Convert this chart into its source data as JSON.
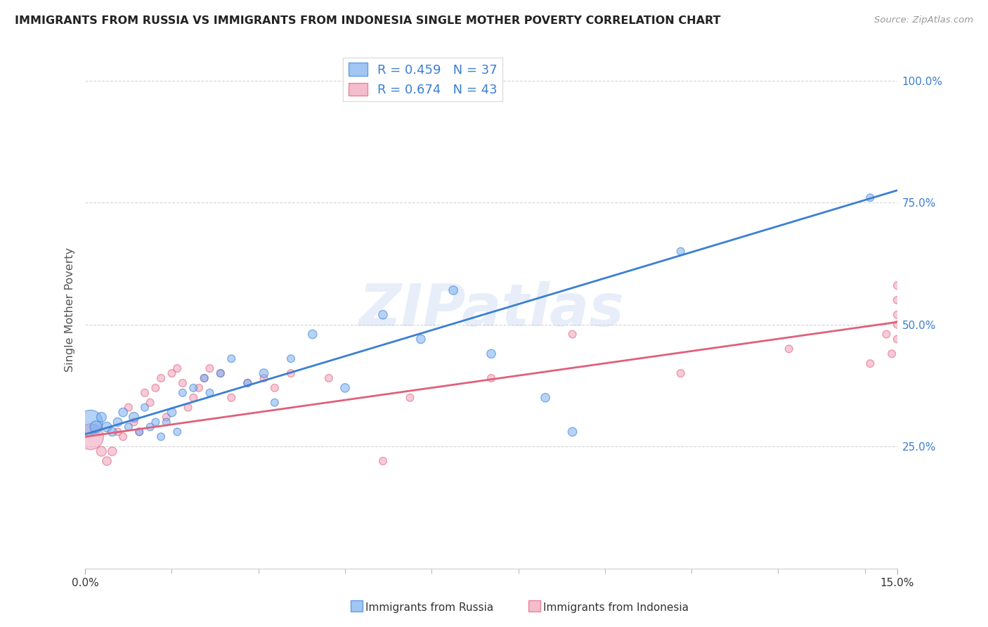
{
  "title": "IMMIGRANTS FROM RUSSIA VS IMMIGRANTS FROM INDONESIA SINGLE MOTHER POVERTY CORRELATION CHART",
  "source": "Source: ZipAtlas.com",
  "ylabel": "Single Mother Poverty",
  "y_tick_labels": [
    "25.0%",
    "50.0%",
    "75.0%",
    "100.0%"
  ],
  "y_tick_vals": [
    0.25,
    0.5,
    0.75,
    1.0
  ],
  "legend_label_russia": "Immigrants from Russia",
  "legend_label_indonesia": "Immigrants from Indonesia",
  "russia_color": "#7aaff0",
  "indonesia_color": "#f0a0b8",
  "trendline_russia_color": "#3a7fd4",
  "trendline_indonesia_color": "#e0607a",
  "watermark": "ZIPatlas",
  "watermark_color": "#c5d5f0",
  "background_color": "#ffffff",
  "russia_x": [
    0.001,
    0.002,
    0.003,
    0.004,
    0.005,
    0.006,
    0.007,
    0.008,
    0.009,
    0.01,
    0.011,
    0.012,
    0.013,
    0.014,
    0.015,
    0.016,
    0.017,
    0.018,
    0.02,
    0.022,
    0.023,
    0.025,
    0.027,
    0.03,
    0.033,
    0.035,
    0.038,
    0.042,
    0.048,
    0.055,
    0.062,
    0.068,
    0.075,
    0.085,
    0.09,
    0.11,
    0.145
  ],
  "russia_y": [
    0.3,
    0.29,
    0.31,
    0.29,
    0.28,
    0.3,
    0.32,
    0.29,
    0.31,
    0.28,
    0.33,
    0.29,
    0.3,
    0.27,
    0.3,
    0.32,
    0.28,
    0.36,
    0.37,
    0.39,
    0.36,
    0.4,
    0.43,
    0.38,
    0.4,
    0.34,
    0.43,
    0.48,
    0.37,
    0.52,
    0.47,
    0.57,
    0.44,
    0.35,
    0.28,
    0.65,
    0.76
  ],
  "russia_sizes": [
    600,
    150,
    100,
    100,
    80,
    80,
    80,
    60,
    100,
    60,
    60,
    60,
    60,
    60,
    60,
    80,
    60,
    60,
    60,
    60,
    60,
    60,
    60,
    60,
    80,
    60,
    60,
    80,
    80,
    80,
    80,
    80,
    80,
    80,
    80,
    60,
    60
  ],
  "indonesia_x": [
    0.001,
    0.003,
    0.004,
    0.005,
    0.006,
    0.007,
    0.008,
    0.009,
    0.01,
    0.011,
    0.012,
    0.013,
    0.014,
    0.015,
    0.016,
    0.017,
    0.018,
    0.019,
    0.02,
    0.021,
    0.022,
    0.023,
    0.025,
    0.027,
    0.03,
    0.033,
    0.035,
    0.038,
    0.045,
    0.055,
    0.06,
    0.075,
    0.09,
    0.11,
    0.13,
    0.145,
    0.148,
    0.149,
    0.15,
    0.15,
    0.15,
    0.15,
    0.15
  ],
  "indonesia_y": [
    0.27,
    0.24,
    0.22,
    0.24,
    0.28,
    0.27,
    0.33,
    0.3,
    0.28,
    0.36,
    0.34,
    0.37,
    0.39,
    0.31,
    0.4,
    0.41,
    0.38,
    0.33,
    0.35,
    0.37,
    0.39,
    0.41,
    0.4,
    0.35,
    0.38,
    0.39,
    0.37,
    0.4,
    0.39,
    0.22,
    0.35,
    0.39,
    0.48,
    0.4,
    0.45,
    0.42,
    0.48,
    0.44,
    0.47,
    0.5,
    0.52,
    0.55,
    0.58
  ],
  "indonesia_sizes": [
    700,
    100,
    80,
    80,
    60,
    60,
    60,
    60,
    60,
    60,
    60,
    60,
    60,
    60,
    60,
    60,
    60,
    60,
    60,
    60,
    60,
    60,
    60,
    60,
    60,
    60,
    60,
    60,
    60,
    60,
    60,
    60,
    60,
    60,
    60,
    60,
    60,
    60,
    60,
    60,
    60,
    60,
    60
  ],
  "xmin": 0.0,
  "xmax": 0.15,
  "ymin": 0.0,
  "ymax": 1.06,
  "russia_trend_x0": 0.0,
  "russia_trend_y0": 0.275,
  "russia_trend_x1": 0.15,
  "russia_trend_y1": 0.775,
  "indonesia_trend_x0": 0.0,
  "indonesia_trend_y0": 0.27,
  "indonesia_trend_x1": 0.15,
  "indonesia_trend_y1": 0.505,
  "x_ticks": [
    0.0,
    0.016,
    0.032,
    0.048,
    0.064,
    0.08,
    0.096,
    0.112,
    0.128,
    0.144
  ],
  "title_fontsize": 11.5,
  "source_fontsize": 9.5
}
